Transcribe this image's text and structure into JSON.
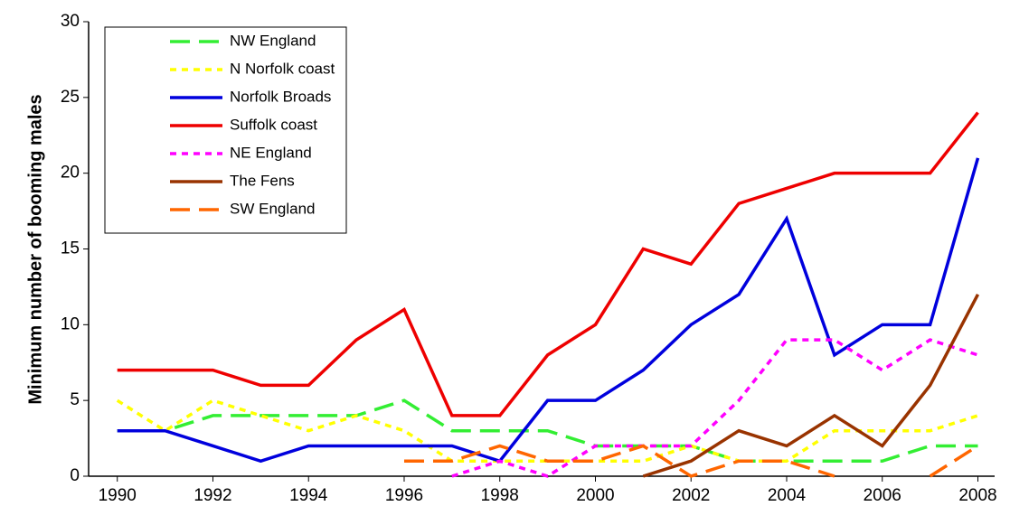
{
  "chart_data": {
    "type": "line",
    "y_label": "Minimum number of booming males",
    "x": [
      1990,
      1991,
      1992,
      1993,
      1994,
      1995,
      1996,
      1997,
      1998,
      1999,
      2000,
      2001,
      2002,
      2003,
      2004,
      2005,
      2006,
      2007,
      2008
    ],
    "xlim": [
      1989.4,
      2008.35
    ],
    "xticks": [
      1990,
      1992,
      1994,
      1996,
      1998,
      2000,
      2002,
      2004,
      2006,
      2008
    ],
    "ylim": [
      0,
      30
    ],
    "yticks": [
      0,
      5,
      10,
      15,
      20,
      25,
      30
    ],
    "grid": false,
    "legend": "upper left",
    "series": [
      {
        "name": "NW England",
        "color": "#33ee33",
        "dash": "dashed",
        "values": [
          3,
          3,
          4,
          4,
          4,
          4,
          5,
          3,
          3,
          3,
          2,
          2,
          2,
          1,
          1,
          1,
          1,
          2,
          2
        ]
      },
      {
        "name": "N Norfolk coast",
        "color": "#ffff00",
        "dash": "dotted",
        "values": [
          5,
          3,
          5,
          4,
          3,
          4,
          3,
          1,
          1,
          1,
          1,
          1,
          2,
          1,
          1,
          3,
          3,
          3,
          4
        ]
      },
      {
        "name": "Norfolk Broads",
        "color": "#0000dd",
        "dash": "solid",
        "values": [
          3,
          3,
          2,
          1,
          2,
          2,
          2,
          2,
          1,
          5,
          5,
          7,
          10,
          12,
          17,
          8,
          10,
          10,
          21
        ]
      },
      {
        "name": "Suffolk coast",
        "color": "#ee0000",
        "dash": "solid",
        "values": [
          7,
          7,
          7,
          6,
          6,
          9,
          11,
          4,
          4,
          8,
          10,
          15,
          14,
          18,
          19,
          20,
          20,
          20,
          24
        ]
      },
      {
        "name": "NE England",
        "color": "#ff00ff",
        "dash": "dotted",
        "values": [
          null,
          null,
          null,
          null,
          null,
          null,
          null,
          0,
          1,
          0,
          2,
          2,
          2,
          5,
          9,
          9,
          7,
          9,
          8
        ]
      },
      {
        "name": "The Fens",
        "color": "#993300",
        "dash": "solid",
        "values": [
          null,
          null,
          null,
          null,
          null,
          null,
          null,
          null,
          null,
          null,
          null,
          0,
          1,
          3,
          2,
          4,
          2,
          6,
          12
        ]
      },
      {
        "name": "SW England",
        "color": "#ff6600",
        "dash": "dashed",
        "values": [
          null,
          null,
          null,
          null,
          null,
          null,
          1,
          1,
          2,
          1,
          1,
          2,
          0,
          1,
          1,
          0,
          null,
          0,
          2
        ]
      }
    ]
  }
}
